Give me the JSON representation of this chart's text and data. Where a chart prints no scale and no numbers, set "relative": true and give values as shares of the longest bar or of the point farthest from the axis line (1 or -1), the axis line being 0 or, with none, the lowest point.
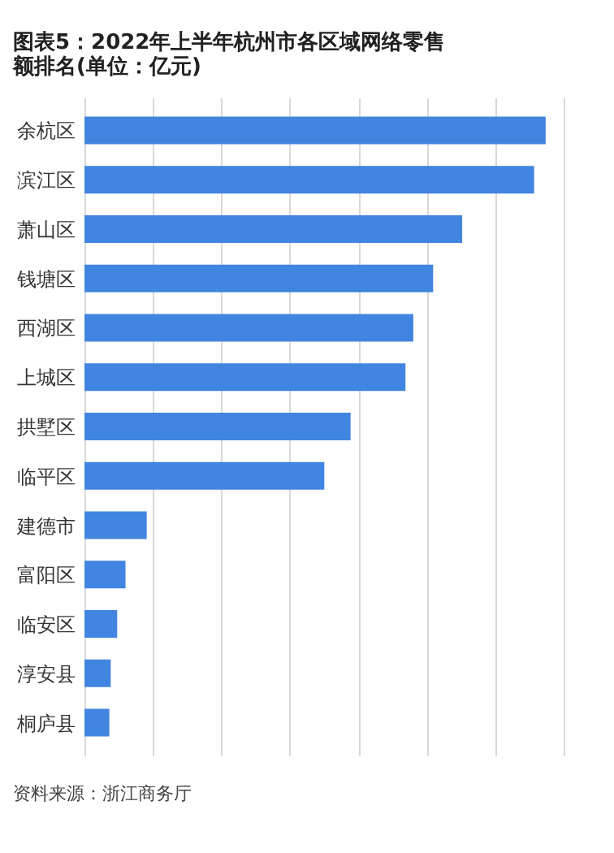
{
  "chart_data": {
    "type": "bar",
    "orientation": "horizontal",
    "relative": true,
    "grid": "x",
    "title": "图表5：2022年上半年杭州市各区域网络零售额排名(单位：亿元)",
    "categories": [
      "余杭区",
      "滨江区",
      "萧山区",
      "钱塘区",
      "西湖区",
      "上城区",
      "拱墅区",
      "临平区",
      "建德市",
      "富阳区",
      "临安区",
      "淳安县",
      "桐庐县"
    ],
    "values": [
      1,
      0.975,
      0.819,
      0.756,
      0.713,
      0.696,
      0.577,
      0.52,
      0.135,
      0.089,
      0.071,
      0.057,
      0.054
    ],
    "color": "#4285e0",
    "annotations": [
      "资料来源：浙江商务厅"
    ]
  }
}
